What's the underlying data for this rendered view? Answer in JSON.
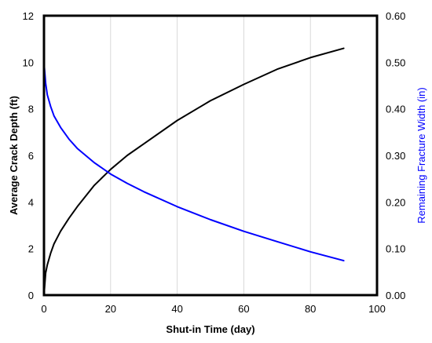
{
  "chart_data": {
    "type": "line",
    "title": "",
    "xlabel": "Shut-in Time (day)",
    "ylabel": "Average Crack Depth (ft)",
    "y2label": "Remaining Fracture Width (in)",
    "xlim": [
      0,
      100
    ],
    "ylim": [
      0,
      12
    ],
    "y2lim": [
      0,
      0.6
    ],
    "xticks": [
      "0",
      "20",
      "40",
      "60",
      "80",
      "100"
    ],
    "yticks": [
      "0",
      "2",
      "4",
      "6",
      "8",
      "10",
      "12"
    ],
    "y2ticks": [
      "0.00",
      "0.10",
      "0.20",
      "0.30",
      "0.40",
      "0.50",
      "0.60"
    ],
    "grid": "vertical",
    "series": [
      {
        "axis": "left",
        "color": "#000000",
        "x": [
          0,
          0.5,
          1,
          2,
          3,
          5,
          7.5,
          10,
          15,
          20,
          25,
          30,
          40,
          50,
          60,
          70,
          80,
          90
        ],
        "y": [
          0,
          0.95,
          1.3,
          1.8,
          2.2,
          2.75,
          3.3,
          3.8,
          4.7,
          5.4,
          6.0,
          6.5,
          7.5,
          8.35,
          9.05,
          9.7,
          10.2,
          10.6
        ]
      },
      {
        "axis": "right",
        "color": "#0000ff",
        "x": [
          0,
          0.5,
          1,
          2,
          3,
          5,
          7.5,
          10,
          15,
          20,
          25,
          30,
          40,
          50,
          60,
          70,
          80,
          90
        ],
        "y": [
          0.5,
          0.455,
          0.43,
          0.405,
          0.385,
          0.36,
          0.335,
          0.315,
          0.285,
          0.26,
          0.24,
          0.222,
          0.19,
          0.162,
          0.137,
          0.115,
          0.093,
          0.074
        ]
      }
    ]
  }
}
